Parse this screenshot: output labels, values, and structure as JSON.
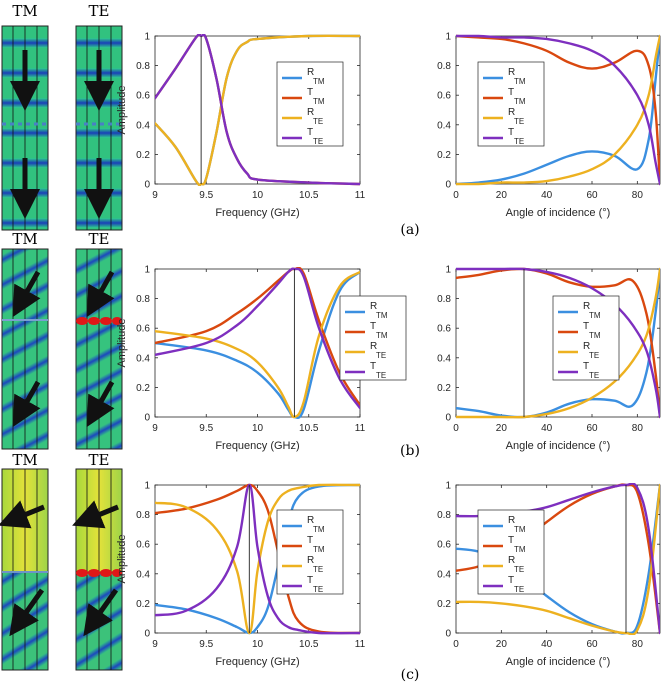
{
  "colors": {
    "R_TM": "#3b8fe0",
    "T_TM": "#d9480f",
    "R_TE": "#edb120",
    "T_TE": "#7e2fbf",
    "field_green": "#35c07a",
    "field_blue": "#1840b8",
    "arrow": "#111111"
  },
  "panel_labels": [
    "TM",
    "TE"
  ],
  "row_labels": [
    "(a)",
    "(b)",
    "(c)"
  ],
  "legend_entries": [
    {
      "main": "R",
      "sub": "TM",
      "color_key": "R_TM"
    },
    {
      "main": "T",
      "sub": "TM",
      "color_key": "T_TM"
    },
    {
      "main": "R",
      "sub": "TE",
      "color_key": "R_TE"
    },
    {
      "main": "T",
      "sub": "TE",
      "color_key": "T_TE"
    }
  ],
  "chart_data": [
    {
      "type": "line",
      "row": "a",
      "xlabel": "Frequency (GHz)",
      "ylabel": "Amplitude",
      "xlim": [
        9,
        11
      ],
      "ylim": [
        0,
        1
      ],
      "xticks": [
        9,
        9.5,
        10,
        10.5,
        11
      ],
      "xtick_labels": [
        "9",
        "9.5",
        "10",
        "10.5",
        "11"
      ],
      "yticks": [
        0,
        0.2,
        0.4,
        0.6,
        0.8,
        1
      ],
      "ytick_labels": [
        "0",
        "0.2",
        "0.4",
        "0.6",
        "0.8",
        "1"
      ],
      "vline": 9.45,
      "legend_position": "right",
      "series": [
        {
          "key": "R_TM",
          "x": [
            9,
            9.2,
            9.4,
            9.45,
            9.5,
            9.6,
            9.7,
            9.8,
            9.9,
            10,
            10.5,
            11
          ],
          "y": [
            0.41,
            0.25,
            0.02,
            0,
            0.04,
            0.35,
            0.72,
            0.9,
            0.96,
            0.98,
            1,
            1
          ]
        },
        {
          "key": "T_TM",
          "x": [
            9,
            9.2,
            9.4,
            9.45,
            9.5,
            9.6,
            9.7,
            9.8,
            9.9,
            10,
            10.5,
            11
          ],
          "y": [
            0.58,
            0.78,
            0.99,
            1,
            0.98,
            0.71,
            0.35,
            0.17,
            0.07,
            0.03,
            0.01,
            0
          ]
        },
        {
          "key": "R_TE",
          "x": [
            9,
            9.2,
            9.4,
            9.45,
            9.5,
            9.6,
            9.7,
            9.8,
            9.9,
            10,
            10.5,
            11
          ],
          "y": [
            0.41,
            0.25,
            0.02,
            0,
            0.04,
            0.35,
            0.72,
            0.9,
            0.96,
            0.98,
            1,
            1
          ]
        },
        {
          "key": "T_TE",
          "x": [
            9,
            9.2,
            9.4,
            9.45,
            9.5,
            9.6,
            9.7,
            9.8,
            9.9,
            10,
            10.5,
            11
          ],
          "y": [
            0.58,
            0.78,
            0.99,
            1,
            0.98,
            0.71,
            0.35,
            0.17,
            0.07,
            0.03,
            0.01,
            0
          ]
        }
      ]
    },
    {
      "type": "line",
      "row": "a",
      "xlabel": "Angle of incidence (°)",
      "ylabel": "",
      "xlim": [
        0,
        90
      ],
      "ylim": [
        0,
        1
      ],
      "xticks": [
        0,
        20,
        40,
        60,
        80
      ],
      "xtick_labels": [
        "0",
        "20",
        "40",
        "60",
        "80"
      ],
      "yticks": [
        0,
        0.2,
        0.4,
        0.6,
        0.8,
        1
      ],
      "ytick_labels": [
        "0",
        "0.2",
        "0.4",
        "0.6",
        "0.8",
        "1"
      ],
      "vline": null,
      "legend_position": "right",
      "series": [
        {
          "key": "R_TM",
          "x": [
            0,
            10,
            20,
            30,
            40,
            50,
            60,
            70,
            80,
            85,
            88,
            90
          ],
          "y": [
            0,
            0.01,
            0.03,
            0.07,
            0.13,
            0.19,
            0.22,
            0.19,
            0.1,
            0.3,
            0.7,
            1
          ]
        },
        {
          "key": "T_TM",
          "x": [
            0,
            10,
            20,
            30,
            40,
            50,
            60,
            70,
            80,
            85,
            88,
            90
          ],
          "y": [
            1,
            0.99,
            0.98,
            0.95,
            0.9,
            0.82,
            0.78,
            0.82,
            0.9,
            0.8,
            0.5,
            0
          ]
        },
        {
          "key": "R_TE",
          "x": [
            0,
            10,
            20,
            30,
            40,
            50,
            60,
            70,
            80,
            85,
            88,
            90
          ],
          "y": [
            0,
            0,
            0.01,
            0.01,
            0.02,
            0.05,
            0.1,
            0.2,
            0.4,
            0.6,
            0.85,
            1
          ]
        },
        {
          "key": "T_TE",
          "x": [
            0,
            10,
            20,
            30,
            40,
            50,
            60,
            70,
            80,
            85,
            88,
            90
          ],
          "y": [
            1,
            1,
            0.99,
            0.99,
            0.98,
            0.95,
            0.9,
            0.8,
            0.6,
            0.4,
            0.15,
            0
          ]
        }
      ]
    },
    {
      "type": "line",
      "row": "b",
      "xlabel": "Frequency (GHz)",
      "ylabel": "Amplitude",
      "xlim": [
        9,
        11
      ],
      "ylim": [
        0,
        1
      ],
      "xticks": [
        9,
        9.5,
        10,
        10.5,
        11
      ],
      "xtick_labels": [
        "9",
        "9.5",
        "10",
        "10.5",
        "11"
      ],
      "yticks": [
        0,
        0.2,
        0.4,
        0.6,
        0.8,
        1
      ],
      "ytick_labels": [
        "0",
        "0.2",
        "0.4",
        "0.6",
        "0.8",
        "1"
      ],
      "vline": 10.36,
      "legend_position": "right",
      "series": [
        {
          "key": "R_TM",
          "x": [
            9,
            9.5,
            9.8,
            10,
            10.2,
            10.3,
            10.36,
            10.45,
            10.6,
            10.8,
            11
          ],
          "y": [
            0.5,
            0.45,
            0.38,
            0.3,
            0.16,
            0.05,
            0,
            0.05,
            0.45,
            0.85,
            0.98
          ]
        },
        {
          "key": "T_TM",
          "x": [
            9,
            9.5,
            9.8,
            10,
            10.2,
            10.3,
            10.36,
            10.45,
            10.6,
            10.8,
            11
          ],
          "y": [
            0.5,
            0.58,
            0.7,
            0.8,
            0.92,
            0.98,
            1,
            0.97,
            0.65,
            0.3,
            0.08
          ]
        },
        {
          "key": "R_TE",
          "x": [
            9,
            9.5,
            9.8,
            10,
            10.2,
            10.3,
            10.36,
            10.45,
            10.6,
            10.8,
            11
          ],
          "y": [
            0.58,
            0.53,
            0.46,
            0.37,
            0.2,
            0.07,
            0,
            0.1,
            0.55,
            0.88,
            0.98
          ]
        },
        {
          "key": "T_TE",
          "x": [
            9,
            9.5,
            9.8,
            10,
            10.2,
            10.3,
            10.36,
            10.45,
            10.6,
            10.8,
            11
          ],
          "y": [
            0.42,
            0.5,
            0.62,
            0.75,
            0.9,
            0.98,
            1,
            0.95,
            0.6,
            0.26,
            0.06
          ]
        }
      ]
    },
    {
      "type": "line",
      "row": "b",
      "xlabel": "Angle of incidence (°)",
      "ylabel": "",
      "xlim": [
        0,
        90
      ],
      "ylim": [
        0,
        1
      ],
      "xticks": [
        0,
        20,
        40,
        60,
        80
      ],
      "xtick_labels": [
        "0",
        "20",
        "40",
        "60",
        "80"
      ],
      "yticks": [
        0,
        0.2,
        0.4,
        0.6,
        0.8,
        1
      ],
      "ytick_labels": [
        "0",
        "0.2",
        "0.4",
        "0.6",
        "0.8",
        "1"
      ],
      "vline": 30,
      "legend_position": "right",
      "series": [
        {
          "key": "R_TM",
          "x": [
            0,
            10,
            20,
            30,
            40,
            50,
            60,
            70,
            78,
            84,
            88,
            90
          ],
          "y": [
            0.06,
            0.04,
            0.01,
            0,
            0.03,
            0.09,
            0.12,
            0.11,
            0.08,
            0.3,
            0.7,
            1
          ]
        },
        {
          "key": "T_TM",
          "x": [
            0,
            10,
            20,
            30,
            40,
            50,
            60,
            70,
            78,
            84,
            88,
            90
          ],
          "y": [
            0.94,
            0.96,
            0.99,
            1,
            0.97,
            0.91,
            0.88,
            0.89,
            0.92,
            0.7,
            0.3,
            0
          ]
        },
        {
          "key": "R_TE",
          "x": [
            0,
            10,
            20,
            30,
            40,
            50,
            60,
            70,
            78,
            84,
            88,
            90
          ],
          "y": [
            0,
            0,
            0,
            0,
            0.02,
            0.06,
            0.13,
            0.24,
            0.38,
            0.55,
            0.8,
            1
          ]
        },
        {
          "key": "T_TE",
          "x": [
            0,
            10,
            20,
            30,
            40,
            50,
            60,
            70,
            78,
            84,
            88,
            90
          ],
          "y": [
            1,
            1,
            1,
            1,
            0.98,
            0.94,
            0.87,
            0.76,
            0.62,
            0.45,
            0.2,
            0
          ]
        }
      ]
    },
    {
      "type": "line",
      "row": "c",
      "xlabel": "Frequency (GHz)",
      "ylabel": "Amplitude",
      "xlim": [
        9,
        11
      ],
      "ylim": [
        0,
        1
      ],
      "xticks": [
        9,
        9.5,
        10,
        10.5,
        11
      ],
      "xtick_labels": [
        "9",
        "9.5",
        "10",
        "10.5",
        "11"
      ],
      "yticks": [
        0,
        0.2,
        0.4,
        0.6,
        0.8,
        1
      ],
      "ytick_labels": [
        "0",
        "0.2",
        "0.4",
        "0.6",
        "0.8",
        "1"
      ],
      "vline": 9.92,
      "legend_position": "right",
      "series": [
        {
          "key": "R_TM",
          "x": [
            9,
            9.3,
            9.6,
            9.8,
            9.92,
            10,
            10.1,
            10.2,
            10.3,
            10.4,
            10.6,
            11
          ],
          "y": [
            0.19,
            0.16,
            0.1,
            0.04,
            0,
            0.04,
            0.17,
            0.45,
            0.75,
            0.92,
            0.99,
            1
          ]
        },
        {
          "key": "T_TM",
          "x": [
            9,
            9.3,
            9.6,
            9.8,
            9.92,
            10,
            10.1,
            10.2,
            10.3,
            10.4,
            10.6,
            11
          ],
          "y": [
            0.81,
            0.84,
            0.9,
            0.96,
            1,
            0.96,
            0.83,
            0.55,
            0.25,
            0.08,
            0.01,
            0
          ]
        },
        {
          "key": "R_TE",
          "x": [
            9,
            9.3,
            9.6,
            9.8,
            9.92,
            10,
            10.1,
            10.2,
            10.3,
            10.4,
            10.6,
            11
          ],
          "y": [
            0.88,
            0.85,
            0.7,
            0.42,
            0,
            0.42,
            0.75,
            0.9,
            0.96,
            0.98,
            1,
            1
          ]
        },
        {
          "key": "T_TE",
          "x": [
            9,
            9.3,
            9.6,
            9.8,
            9.92,
            10,
            10.1,
            10.2,
            10.3,
            10.4,
            10.6,
            11
          ],
          "y": [
            0.12,
            0.15,
            0.3,
            0.58,
            1,
            0.58,
            0.25,
            0.1,
            0.04,
            0.02,
            0,
            0
          ]
        }
      ]
    },
    {
      "type": "line",
      "row": "c",
      "xlabel": "Angle of incidence (°)",
      "ylabel": "",
      "xlim": [
        0,
        90
      ],
      "ylim": [
        0,
        1
      ],
      "xticks": [
        0,
        20,
        40,
        60,
        80
      ],
      "xtick_labels": [
        "0",
        "20",
        "40",
        "60",
        "80"
      ],
      "yticks": [
        0,
        0.2,
        0.4,
        0.6,
        0.8,
        1
      ],
      "ytick_labels": [
        "0",
        "0.2",
        "0.4",
        "0.6",
        "0.8",
        "1"
      ],
      "vline": 75,
      "legend_position": "right",
      "series": [
        {
          "key": "R_TM",
          "x": [
            0,
            10,
            20,
            30,
            40,
            50,
            60,
            70,
            75,
            80,
            85,
            90
          ],
          "y": [
            0.57,
            0.55,
            0.48,
            0.37,
            0.25,
            0.14,
            0.06,
            0.01,
            0,
            0.05,
            0.4,
            1
          ]
        },
        {
          "key": "T_TM",
          "x": [
            0,
            10,
            20,
            30,
            40,
            50,
            60,
            70,
            75,
            80,
            85,
            90
          ],
          "y": [
            0.42,
            0.45,
            0.52,
            0.63,
            0.75,
            0.86,
            0.94,
            0.99,
            1,
            0.95,
            0.6,
            0
          ]
        },
        {
          "key": "R_TE",
          "x": [
            0,
            10,
            20,
            30,
            40,
            50,
            60,
            70,
            75,
            80,
            85,
            90
          ],
          "y": [
            0.21,
            0.21,
            0.2,
            0.18,
            0.15,
            0.1,
            0.05,
            0.01,
            0,
            0.02,
            0.3,
            1
          ]
        },
        {
          "key": "T_TE",
          "x": [
            0,
            10,
            20,
            30,
            40,
            50,
            60,
            70,
            75,
            80,
            85,
            90
          ],
          "y": [
            0.79,
            0.79,
            0.8,
            0.82,
            0.85,
            0.9,
            0.95,
            0.99,
            1,
            0.98,
            0.7,
            0
          ]
        }
      ]
    }
  ]
}
